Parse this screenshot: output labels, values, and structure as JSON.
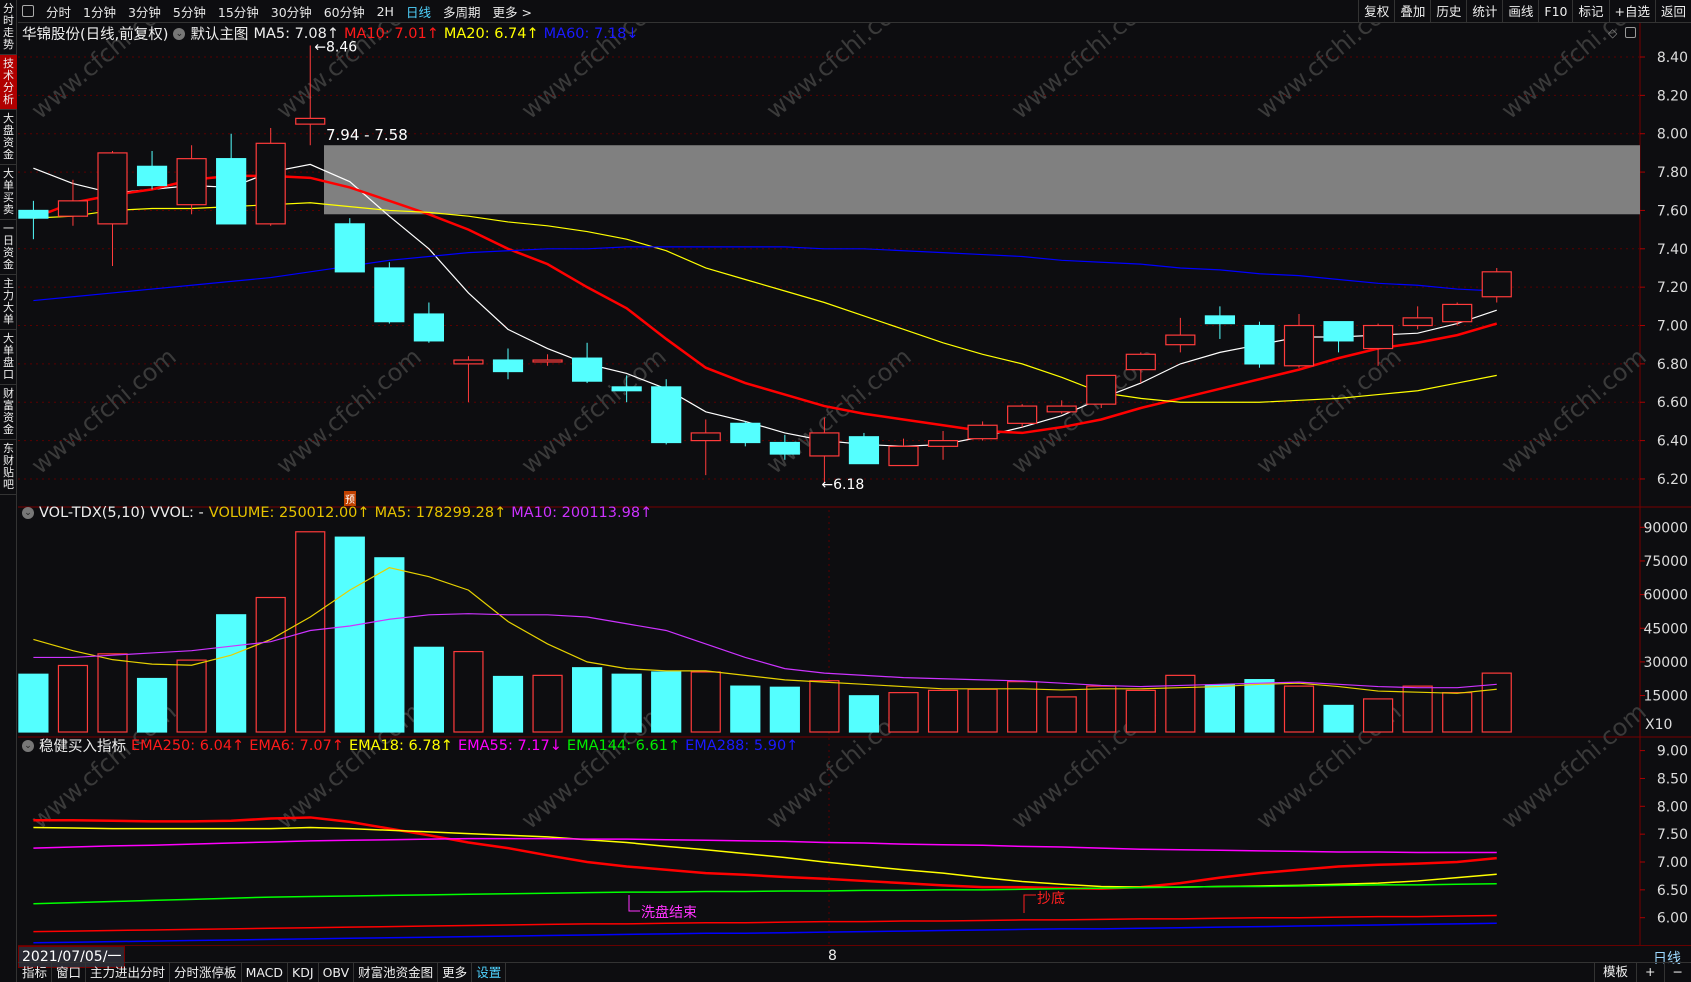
{
  "topbar": {
    "tabs": [
      "分时",
      "1分钟",
      "3分钟",
      "5分钟",
      "15分钟",
      "30分钟",
      "60分钟",
      "2H",
      "日线",
      "多周期",
      "更多 >"
    ],
    "active": "日线",
    "right": [
      "复权",
      "叠加",
      "历史",
      "统计",
      "画线",
      "F10",
      "标记",
      "+自选",
      "返回"
    ]
  },
  "sidebar": {
    "items": [
      "分时走势",
      "技术分析",
      "大盘资金",
      "大单买卖",
      "一日资金",
      "主力大单",
      "大单盘口",
      "财富资金",
      "东财贴吧"
    ],
    "active": "技术分析"
  },
  "price_header": {
    "title": "华锦股份(日线,前复权)",
    "template": "默认主图",
    "ma5": "MA5: 7.08↑",
    "ma10": "MA10: 7.01↑",
    "ma20": "MA20: 6.74↑",
    "ma60": "MA60: 7.18↓"
  },
  "vol_header": {
    "title": "VOL-TDX(5,10) VVOL: -",
    "volume": "VOLUME: 250012.00↑",
    "ma5": "MA5: 178299.28↑",
    "ma10": "MA10: 200113.98↑",
    "pre_badge": "预"
  },
  "ema_header": {
    "title": "稳健买入指标",
    "ema250": "EMA250: 6.04↑",
    "ema6": "EMA6: 7.07↑",
    "ema18": "EMA18: 6.78↑",
    "ema55": "EMA55: 7.17↓",
    "ema144": "EMA144: 6.61↑",
    "ema288": "EMA288: 5.90↑"
  },
  "annotations": {
    "high": "8.46",
    "low": "6.18",
    "zone": "7.94 - 7.58",
    "wash_end": "洗盘结束",
    "bottom_buy": "抄底"
  },
  "watermark": "www.cfchi.com",
  "datebar": {
    "date": "2021/07/05/一",
    "tick": "8",
    "period": "日线"
  },
  "bottombar": {
    "items": [
      "指标",
      "窗口",
      "主力进出分时",
      "分时涨停板",
      "MACD",
      "KDJ",
      "OBV",
      "财富池资金图",
      "更多",
      "设置"
    ],
    "right": [
      "模板",
      "+",
      "−"
    ]
  },
  "colors": {
    "up": "#ff3b3b",
    "down": "#54ffff",
    "ma5": "#ffffff",
    "ma10": "#ff0000",
    "ma20": "#ffff00",
    "ma60": "#0000ff",
    "vma5": "#e6d100",
    "vma10": "#cc33ff",
    "ema55": "#ff00ff",
    "ema144": "#00ff00"
  },
  "chart_data": [
    {
      "type": "candlestick",
      "ylim": [
        6.2,
        8.4
      ],
      "yticks": [
        "8.40",
        "8.20",
        "8.00",
        "7.80",
        "7.60",
        "7.40",
        "7.20",
        "7.00",
        "6.80",
        "6.60",
        "6.40",
        "6.20"
      ],
      "zone": [
        7.58,
        7.94
      ],
      "ohlc": [
        [
          7.6,
          7.65,
          7.45,
          7.56
        ],
        [
          7.57,
          7.76,
          7.52,
          7.65
        ],
        [
          7.53,
          7.91,
          7.31,
          7.9
        ],
        [
          7.83,
          7.91,
          7.71,
          7.73
        ],
        [
          7.63,
          7.94,
          7.58,
          7.87
        ],
        [
          7.87,
          8.0,
          7.53,
          7.53
        ],
        [
          7.53,
          8.03,
          7.52,
          7.95
        ],
        [
          8.05,
          8.46,
          7.94,
          8.08
        ],
        [
          7.53,
          7.56,
          7.28,
          7.28
        ],
        [
          7.3,
          7.33,
          7.01,
          7.02
        ],
        [
          7.06,
          7.12,
          6.91,
          6.92
        ],
        [
          6.8,
          6.84,
          6.6,
          6.82
        ],
        [
          6.82,
          6.88,
          6.72,
          6.76
        ],
        [
          6.81,
          6.85,
          6.79,
          6.82
        ],
        [
          6.83,
          6.91,
          6.7,
          6.71
        ],
        [
          6.68,
          6.74,
          6.6,
          6.66
        ],
        [
          6.68,
          6.72,
          6.38,
          6.39
        ],
        [
          6.4,
          6.51,
          6.22,
          6.44
        ],
        [
          6.49,
          6.5,
          6.37,
          6.39
        ],
        [
          6.39,
          6.43,
          6.3,
          6.33
        ],
        [
          6.32,
          6.52,
          6.18,
          6.44
        ],
        [
          6.42,
          6.44,
          6.28,
          6.28
        ],
        [
          6.27,
          6.41,
          6.27,
          6.37
        ],
        [
          6.37,
          6.45,
          6.3,
          6.4
        ],
        [
          6.41,
          6.5,
          6.4,
          6.48
        ],
        [
          6.49,
          6.59,
          6.47,
          6.58
        ],
        [
          6.55,
          6.61,
          6.54,
          6.58
        ],
        [
          6.59,
          6.74,
          6.57,
          6.74
        ],
        [
          6.77,
          6.86,
          6.7,
          6.85
        ],
        [
          6.9,
          7.04,
          6.86,
          6.95
        ],
        [
          7.05,
          7.1,
          6.93,
          7.01
        ],
        [
          7.0,
          7.02,
          6.78,
          6.8
        ],
        [
          6.79,
          7.06,
          6.78,
          7.0
        ],
        [
          7.02,
          7.02,
          6.86,
          6.92
        ],
        [
          6.88,
          7.01,
          6.79,
          7.0
        ],
        [
          7.0,
          7.1,
          6.98,
          7.04
        ],
        [
          7.02,
          7.12,
          7.0,
          7.11
        ],
        [
          7.15,
          7.3,
          7.12,
          7.28
        ]
      ],
      "series": [
        {
          "name": "MA5",
          "color": "#ffffff",
          "values": [
            7.82,
            7.74,
            7.69,
            7.71,
            7.73,
            7.72,
            7.8,
            7.84,
            7.75,
            7.57,
            7.4,
            7.17,
            6.98,
            6.88,
            6.8,
            6.75,
            6.67,
            6.55,
            6.5,
            6.44,
            6.4,
            6.38,
            6.37,
            6.38,
            6.42,
            6.47,
            6.53,
            6.62,
            6.7,
            6.8,
            6.86,
            6.9,
            6.94,
            6.94,
            6.95,
            6.96,
            7.01,
            7.08
          ]
        },
        {
          "name": "MA10",
          "color": "#ff0000",
          "values": [
            7.56,
            7.64,
            7.68,
            7.71,
            7.76,
            7.78,
            7.78,
            7.77,
            7.72,
            7.65,
            7.58,
            7.5,
            7.4,
            7.32,
            7.2,
            7.09,
            6.93,
            6.78,
            6.7,
            6.64,
            6.58,
            6.54,
            6.51,
            6.48,
            6.45,
            6.44,
            6.47,
            6.51,
            6.57,
            6.62,
            6.67,
            6.72,
            6.77,
            6.83,
            6.88,
            6.91,
            6.95,
            7.01
          ]
        },
        {
          "name": "MA20",
          "color": "#ffff00",
          "values": [
            7.56,
            7.57,
            7.6,
            7.61,
            7.61,
            7.62,
            7.63,
            7.64,
            7.62,
            7.6,
            7.59,
            7.57,
            7.54,
            7.52,
            7.49,
            7.45,
            7.39,
            7.3,
            7.24,
            7.18,
            7.12,
            7.05,
            6.98,
            6.91,
            6.85,
            6.8,
            6.73,
            6.65,
            6.62,
            6.6,
            6.6,
            6.6,
            6.61,
            6.62,
            6.64,
            6.66,
            6.7,
            6.74
          ]
        },
        {
          "name": "MA60",
          "color": "#0000ff",
          "values": [
            7.13,
            7.15,
            7.17,
            7.19,
            7.21,
            7.23,
            7.25,
            7.28,
            7.31,
            7.34,
            7.36,
            7.38,
            7.39,
            7.4,
            7.4,
            7.41,
            7.41,
            7.41,
            7.41,
            7.41,
            7.4,
            7.4,
            7.39,
            7.38,
            7.37,
            7.36,
            7.34,
            7.33,
            7.32,
            7.3,
            7.29,
            7.27,
            7.26,
            7.24,
            7.22,
            7.21,
            7.19,
            7.18
          ]
        }
      ]
    },
    {
      "type": "bar",
      "ylim": [
        0,
        90000
      ],
      "unit": "X10",
      "yticks": [
        "90000",
        "75000",
        "60000",
        "45000",
        "30000",
        "15000"
      ],
      "values": [
        24500,
        28400,
        33600,
        22600,
        30800,
        51000,
        58700,
        88000,
        85600,
        76400,
        36500,
        34600,
        23500,
        24000,
        27400,
        24500,
        25500,
        25500,
        19200,
        18700,
        21600,
        14900,
        16300,
        17300,
        17800,
        21200,
        14400,
        19200,
        17300,
        24000,
        19700,
        22100,
        19200,
        10600,
        13500,
        19200,
        16300,
        25001
      ],
      "up": [
        false,
        true,
        true,
        false,
        true,
        false,
        true,
        true,
        false,
        false,
        false,
        true,
        false,
        true,
        false,
        false,
        false,
        true,
        false,
        false,
        true,
        false,
        true,
        true,
        true,
        true,
        true,
        true,
        true,
        true,
        false,
        false,
        true,
        false,
        true,
        true,
        true,
        true
      ],
      "series": [
        {
          "name": "MA5",
          "color": "#e6d100",
          "values": [
            40000,
            35000,
            31000,
            29000,
            28500,
            33000,
            40000,
            50000,
            62000,
            72000,
            68000,
            62000,
            48000,
            38000,
            30000,
            27000,
            26000,
            26000,
            24000,
            22000,
            21000,
            20000,
            19000,
            18000,
            18000,
            18000,
            17500,
            18000,
            18000,
            18500,
            19000,
            20000,
            20500,
            19000,
            17000,
            16500,
            16000,
            17800
          ]
        },
        {
          "name": "MA10",
          "color": "#cc33ff",
          "values": [
            32000,
            32000,
            33000,
            34000,
            35000,
            37000,
            39000,
            44000,
            46000,
            49000,
            51000,
            51500,
            51000,
            51000,
            50000,
            47000,
            44000,
            38000,
            32000,
            27000,
            25000,
            24000,
            23000,
            22500,
            22000,
            21500,
            20500,
            19500,
            19000,
            19500,
            20000,
            20500,
            21000,
            20000,
            19000,
            18500,
            18500,
            20000
          ]
        }
      ]
    },
    {
      "type": "line",
      "ylim": [
        5.5,
        9.0
      ],
      "yticks": [
        "9.00",
        "8.50",
        "8.00",
        "7.50",
        "7.00",
        "6.50",
        "6.00"
      ],
      "series": [
        {
          "name": "EMA6",
          "color": "#ff0000",
          "values": [
            7.75,
            7.75,
            7.74,
            7.73,
            7.73,
            7.74,
            7.78,
            7.8,
            7.72,
            7.6,
            7.48,
            7.35,
            7.25,
            7.12,
            7.0,
            6.92,
            6.86,
            6.8,
            6.77,
            6.73,
            6.7,
            6.66,
            6.62,
            6.58,
            6.55,
            6.55,
            6.53,
            6.52,
            6.55,
            6.62,
            6.72,
            6.8,
            6.86,
            6.92,
            6.95,
            6.97,
            7.0,
            7.07
          ]
        },
        {
          "name": "EMA18",
          "color": "#ffff00",
          "values": [
            7.62,
            7.61,
            7.6,
            7.6,
            7.6,
            7.6,
            7.6,
            7.62,
            7.6,
            7.57,
            7.54,
            7.51,
            7.48,
            7.45,
            7.4,
            7.35,
            7.28,
            7.22,
            7.15,
            7.08,
            7.0,
            6.93,
            6.86,
            6.8,
            6.72,
            6.65,
            6.6,
            6.56,
            6.55,
            6.55,
            6.56,
            6.57,
            6.58,
            6.6,
            6.62,
            6.66,
            6.72,
            6.78
          ]
        },
        {
          "name": "EMA55",
          "color": "#ff00ff",
          "values": [
            7.25,
            7.27,
            7.29,
            7.3,
            7.32,
            7.34,
            7.36,
            7.38,
            7.39,
            7.4,
            7.41,
            7.42,
            7.42,
            7.42,
            7.41,
            7.41,
            7.4,
            7.39,
            7.38,
            7.37,
            7.35,
            7.34,
            7.32,
            7.31,
            7.3,
            7.28,
            7.27,
            7.25,
            7.23,
            7.22,
            7.21,
            7.2,
            7.19,
            7.18,
            7.18,
            7.17,
            7.17,
            7.17
          ]
        },
        {
          "name": "EMA144",
          "color": "#00ff00",
          "values": [
            6.25,
            6.27,
            6.29,
            6.31,
            6.33,
            6.35,
            6.37,
            6.38,
            6.39,
            6.4,
            6.41,
            6.42,
            6.43,
            6.44,
            6.45,
            6.46,
            6.46,
            6.47,
            6.47,
            6.48,
            6.48,
            6.49,
            6.49,
            6.5,
            6.5,
            6.51,
            6.52,
            6.53,
            6.54,
            6.55,
            6.56,
            6.56,
            6.57,
            6.58,
            6.59,
            6.59,
            6.6,
            6.61
          ]
        },
        {
          "name": "EMA250",
          "color": "#ff0000",
          "values": [
            5.75,
            5.76,
            5.77,
            5.78,
            5.79,
            5.8,
            5.81,
            5.82,
            5.83,
            5.84,
            5.85,
            5.86,
            5.87,
            5.88,
            5.89,
            5.89,
            5.9,
            5.91,
            5.91,
            5.92,
            5.93,
            5.93,
            5.94,
            5.94,
            5.95,
            5.96,
            5.96,
            5.97,
            5.98,
            5.98,
            5.99,
            6.0,
            6.0,
            6.01,
            6.02,
            6.02,
            6.03,
            6.04
          ]
        },
        {
          "name": "EMA288",
          "color": "#0000ff",
          "values": [
            5.55,
            5.56,
            5.57,
            5.58,
            5.59,
            5.6,
            5.61,
            5.62,
            5.63,
            5.64,
            5.65,
            5.66,
            5.67,
            5.68,
            5.69,
            5.7,
            5.71,
            5.72,
            5.72,
            5.73,
            5.74,
            5.75,
            5.76,
            5.77,
            5.78,
            5.79,
            5.8,
            5.8,
            5.81,
            5.82,
            5.83,
            5.84,
            5.85,
            5.86,
            5.87,
            5.88,
            5.89,
            5.9
          ]
        }
      ]
    }
  ]
}
